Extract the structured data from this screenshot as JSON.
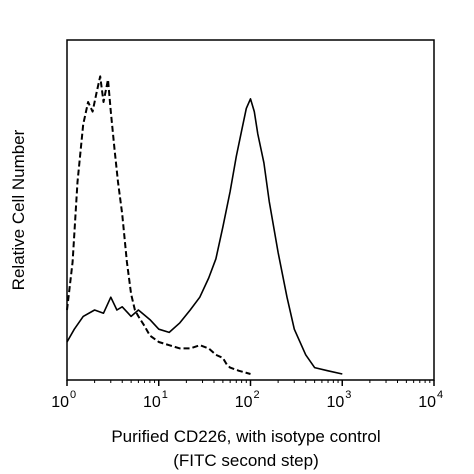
{
  "chart_data": {
    "type": "line",
    "title": "",
    "xlabel_line1": "Purified CD226, with isotype control",
    "xlabel_line2": "(FITC second step)",
    "ylabel": "Relative Cell Number",
    "x_scale": "log",
    "xlim": [
      1,
      10000
    ],
    "ylim": [
      0,
      100
    ],
    "x_ticks": [
      {
        "base": "10",
        "exp": "0",
        "value": 1
      },
      {
        "base": "10",
        "exp": "1",
        "value": 10
      },
      {
        "base": "10",
        "exp": "2",
        "value": 100
      },
      {
        "base": "10",
        "exp": "3",
        "value": 1000
      },
      {
        "base": "10",
        "exp": "4",
        "value": 10000
      }
    ],
    "grid": false,
    "legend": "none",
    "series": [
      {
        "style": "dashed",
        "color": "#000000",
        "x": [
          1.0,
          1.15,
          1.3,
          1.5,
          1.7,
          1.9,
          2.1,
          2.3,
          2.5,
          2.8,
          3.0,
          3.3,
          3.6,
          4.0,
          4.5,
          5.0,
          5.5,
          6.0,
          7.0,
          8.0,
          10,
          13,
          17,
          22,
          28,
          35,
          42,
          50,
          55,
          60,
          75,
          100
        ],
        "y": [
          20,
          35,
          60,
          78,
          85,
          82,
          88,
          93,
          85,
          92,
          82,
          70,
          60,
          50,
          35,
          25,
          20,
          18,
          15,
          12,
          10,
          9,
          8,
          8,
          9,
          8,
          6,
          5,
          3,
          2,
          1,
          0
        ]
      },
      {
        "style": "solid",
        "color": "#000000",
        "x": [
          1.0,
          1.2,
          1.5,
          2.0,
          2.5,
          3.0,
          3.5,
          4.0,
          5.0,
          6.0,
          8.0,
          10,
          13,
          17,
          22,
          28,
          35,
          42,
          50,
          60,
          70,
          80,
          90,
          100,
          110,
          120,
          140,
          160,
          200,
          250,
          300,
          400,
          500,
          700,
          1000
        ],
        "y": [
          10,
          14,
          18,
          20,
          19,
          24,
          20,
          21,
          18,
          20,
          17,
          14,
          13,
          16,
          20,
          24,
          30,
          36,
          46,
          57,
          68,
          76,
          83,
          86,
          82,
          75,
          66,
          54,
          38,
          24,
          14,
          6,
          2,
          1,
          0
        ]
      }
    ]
  }
}
